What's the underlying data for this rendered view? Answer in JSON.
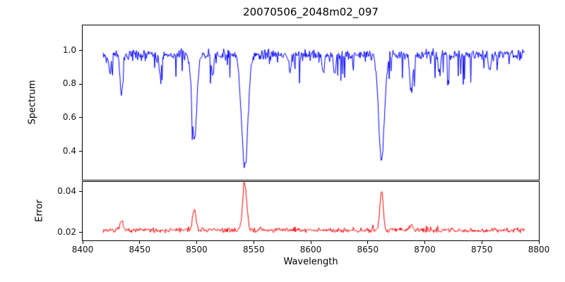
{
  "title": "20070506_2048m02_097",
  "chart_data": [
    {
      "type": "line",
      "name": "spectrum",
      "ylabel": "Spectrum",
      "line_color": "#0000ff",
      "x_start": 8418,
      "x_end": 8788,
      "x_step": 0.55,
      "xlim": [
        8400,
        8800
      ],
      "ylim": [
        0.23,
        1.15
      ],
      "yticks": [
        0.4,
        0.6,
        0.8,
        1.0
      ],
      "ytick_labels": [
        "0.4",
        "0.6",
        "0.8",
        "1.0"
      ],
      "continuum": 0.975,
      "noise_sigma": 0.015,
      "dip_probability": 0.08,
      "dip_max": 0.18,
      "absorption_lines": [
        {
          "center": 8424.0,
          "depth": 0.1,
          "sigma": 1.0
        },
        {
          "center": 8434.0,
          "depth": 0.24,
          "sigma": 1.2
        },
        {
          "center": 8468.0,
          "depth": 0.12,
          "sigma": 1.0
        },
        {
          "center": 8498.0,
          "depth": 0.5,
          "sigma": 2.2
        },
        {
          "center": 8514.0,
          "depth": 0.14,
          "sigma": 1.0
        },
        {
          "center": 8542.1,
          "depth": 0.67,
          "sigma": 2.8
        },
        {
          "center": 8582.0,
          "depth": 0.1,
          "sigma": 1.0
        },
        {
          "center": 8611.0,
          "depth": 0.1,
          "sigma": 1.0
        },
        {
          "center": 8621.0,
          "depth": 0.12,
          "sigma": 1.0
        },
        {
          "center": 8662.1,
          "depth": 0.63,
          "sigma": 2.5
        },
        {
          "center": 8688.0,
          "depth": 0.22,
          "sigma": 1.3
        },
        {
          "center": 8713.0,
          "depth": 0.1,
          "sigma": 1.0
        },
        {
          "center": 8757.0,
          "depth": 0.1,
          "sigma": 1.0
        }
      ]
    },
    {
      "type": "line",
      "name": "error",
      "ylabel": "Error",
      "xlabel": "Wavelength",
      "line_color": "#ff0000",
      "x_start": 8418,
      "x_end": 8788,
      "x_step": 0.55,
      "xlim": [
        8400,
        8800
      ],
      "xticks": [
        8400,
        8450,
        8500,
        8550,
        8600,
        8650,
        8700,
        8750,
        8800
      ],
      "xtick_labels": [
        "8400",
        "8450",
        "8500",
        "8550",
        "8600",
        "8650",
        "8700",
        "8750",
        "8800"
      ],
      "ylim": [
        0.0162,
        0.0448
      ],
      "yticks": [
        0.02,
        0.04
      ],
      "ytick_labels": [
        "0.02",
        "0.04"
      ],
      "baseline": 0.0212,
      "noise_sigma": 0.0007,
      "spike_probability": 0.05,
      "spike_max": 0.002,
      "error_spikes": [
        {
          "center": 8434.0,
          "height": 0.004,
          "sigma": 1.2
        },
        {
          "center": 8498.0,
          "height": 0.01,
          "sigma": 1.5
        },
        {
          "center": 8542.1,
          "height": 0.0225,
          "sigma": 1.8
        },
        {
          "center": 8662.1,
          "height": 0.019,
          "sigma": 1.5
        },
        {
          "center": 8688.0,
          "height": 0.003,
          "sigma": 1.2
        }
      ]
    }
  ]
}
